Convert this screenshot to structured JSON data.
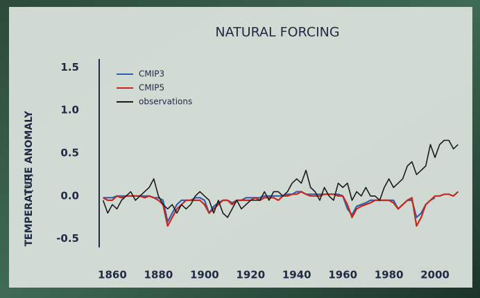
{
  "chart_data": {
    "type": "line",
    "title": "NATURAL FORCING",
    "y_label": "TEMPERATURE ANOMALY",
    "y_unit": "[ºC]",
    "x": [
      1856,
      1858,
      1860,
      1862,
      1864,
      1866,
      1868,
      1870,
      1872,
      1874,
      1876,
      1878,
      1880,
      1882,
      1884,
      1886,
      1888,
      1890,
      1892,
      1894,
      1896,
      1898,
      1900,
      1902,
      1904,
      1906,
      1908,
      1910,
      1912,
      1914,
      1916,
      1918,
      1920,
      1922,
      1924,
      1926,
      1928,
      1930,
      1932,
      1934,
      1936,
      1938,
      1940,
      1942,
      1944,
      1946,
      1948,
      1950,
      1952,
      1954,
      1956,
      1958,
      1960,
      1962,
      1964,
      1966,
      1968,
      1970,
      1972,
      1974,
      1976,
      1978,
      1980,
      1982,
      1984,
      1986,
      1988,
      1990,
      1992,
      1994,
      1996,
      1998,
      2000,
      2002,
      2004,
      2006,
      2008,
      2010
    ],
    "series": [
      {
        "name": "CMIP3",
        "color": "#2f5fa8",
        "values": [
          -0.02,
          -0.02,
          -0.02,
          0.0,
          0.0,
          0.0,
          0.0,
          0.0,
          0.0,
          0.0,
          0.0,
          -0.02,
          -0.02,
          -0.05,
          -0.3,
          -0.2,
          -0.1,
          -0.05,
          -0.05,
          -0.05,
          -0.02,
          -0.02,
          -0.05,
          -0.2,
          -0.12,
          -0.08,
          -0.05,
          -0.05,
          -0.08,
          -0.05,
          -0.05,
          -0.02,
          -0.02,
          -0.02,
          -0.02,
          0.0,
          0.0,
          0.0,
          0.0,
          0.0,
          0.02,
          0.02,
          0.05,
          0.05,
          0.02,
          0.02,
          0.02,
          0.02,
          0.02,
          0.02,
          0.02,
          0.02,
          0.0,
          -0.15,
          -0.22,
          -0.12,
          -0.1,
          -0.08,
          -0.05,
          -0.05,
          -0.05,
          -0.05,
          -0.05,
          -0.05,
          -0.15,
          -0.1,
          -0.05,
          -0.05,
          -0.25,
          -0.2,
          -0.1,
          -0.05,
          -0.02,
          null,
          null,
          null,
          null,
          null
        ]
      },
      {
        "name": "CMIP5",
        "color": "#c8281c",
        "values": [
          -0.02,
          -0.05,
          -0.05,
          0.0,
          -0.02,
          0.0,
          0.0,
          0.0,
          0.0,
          -0.02,
          0.0,
          -0.02,
          -0.05,
          -0.1,
          -0.35,
          -0.25,
          -0.15,
          -0.1,
          -0.05,
          -0.05,
          -0.05,
          -0.05,
          -0.1,
          -0.2,
          -0.15,
          -0.1,
          -0.05,
          -0.05,
          -0.1,
          -0.05,
          -0.05,
          -0.05,
          -0.05,
          -0.02,
          -0.05,
          -0.02,
          -0.02,
          -0.02,
          -0.05,
          0.0,
          0.0,
          0.02,
          0.02,
          0.05,
          0.02,
          0.0,
          0.0,
          0.0,
          0.02,
          0.02,
          0.02,
          0.0,
          0.0,
          -0.1,
          -0.25,
          -0.15,
          -0.12,
          -0.1,
          -0.08,
          -0.05,
          -0.05,
          -0.05,
          -0.05,
          -0.08,
          -0.15,
          -0.1,
          -0.05,
          -0.02,
          -0.35,
          -0.25,
          -0.1,
          -0.05,
          0.0,
          0.0,
          0.02,
          0.02,
          0.0,
          0.05
        ]
      },
      {
        "name": "observations",
        "color": "#1a1a1a",
        "values": [
          -0.05,
          -0.2,
          -0.1,
          -0.15,
          -0.05,
          0.0,
          0.05,
          -0.05,
          0.0,
          0.05,
          0.1,
          0.2,
          0.0,
          -0.1,
          -0.15,
          -0.1,
          -0.2,
          -0.1,
          -0.15,
          -0.1,
          0.0,
          0.05,
          0.0,
          -0.05,
          -0.2,
          -0.05,
          -0.2,
          -0.25,
          -0.15,
          -0.05,
          -0.15,
          -0.1,
          -0.05,
          -0.05,
          -0.05,
          0.05,
          -0.05,
          0.05,
          0.05,
          0.0,
          0.05,
          0.15,
          0.2,
          0.15,
          0.3,
          0.1,
          0.05,
          -0.05,
          0.1,
          0.0,
          -0.05,
          0.15,
          0.1,
          0.15,
          -0.05,
          0.05,
          0.0,
          0.1,
          0.0,
          0.0,
          -0.05,
          0.1,
          0.2,
          0.1,
          0.15,
          0.2,
          0.35,
          0.4,
          0.25,
          0.3,
          0.35,
          0.6,
          0.45,
          0.6,
          0.65,
          0.65,
          0.55,
          0.6
        ]
      }
    ],
    "xlim": [
      1854,
      2012
    ],
    "xticks": [
      1860,
      1880,
      1900,
      1920,
      1940,
      1960,
      1980,
      2000
    ],
    "ylim": [
      -0.6,
      1.6
    ],
    "yticks": [
      -0.5,
      {
        "value": 0,
        "label": "0.0"
      },
      0.5,
      {
        "value": 1,
        "label": "1.0"
      },
      1.5
    ],
    "legend": "upper-left"
  }
}
